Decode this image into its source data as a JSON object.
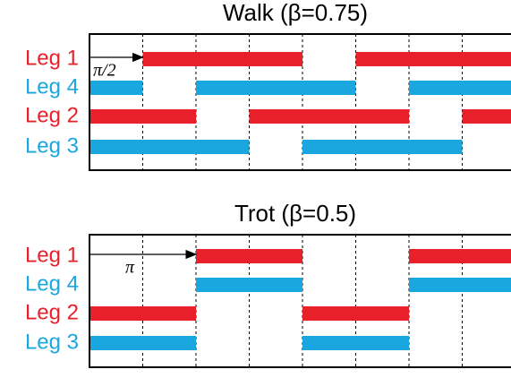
{
  "panels": [
    {
      "title": "Walk (β=0.75)",
      "xlim": [
        0,
        8
      ],
      "xticks": [
        1,
        2,
        3,
        4,
        5,
        6,
        7
      ],
      "arrow": {
        "from": 0,
        "to": 1,
        "label": "π/2"
      },
      "legs": [
        {
          "label": "Leg 1",
          "color": "#e8202a",
          "segments": [
            [
              1,
              4
            ],
            [
              5,
              8
            ]
          ]
        },
        {
          "label": "Leg 4",
          "color": "#1aa7e0",
          "segments": [
            [
              0,
              1
            ],
            [
              2,
              5
            ],
            [
              6,
              8
            ]
          ]
        },
        {
          "label": "Leg 2",
          "color": "#e8202a",
          "segments": [
            [
              0,
              2
            ],
            [
              3,
              6
            ],
            [
              7,
              8
            ]
          ]
        },
        {
          "label": "Leg 3",
          "color": "#1aa7e0",
          "segments": [
            [
              0,
              3
            ],
            [
              4,
              7
            ]
          ]
        }
      ]
    },
    {
      "title": "Trot (β=0.5)",
      "xlim": [
        0,
        8
      ],
      "xticks": [
        1,
        2,
        3,
        4,
        5,
        6,
        7
      ],
      "arrow": {
        "from": 0,
        "to": 2,
        "label": "π"
      },
      "legs": [
        {
          "label": "Leg 1",
          "color": "#e8202a",
          "segments": [
            [
              2,
              4
            ],
            [
              6,
              8
            ]
          ]
        },
        {
          "label": "Leg 4",
          "color": "#1aa7e0",
          "segments": [
            [
              2,
              4
            ],
            [
              6,
              8
            ]
          ]
        },
        {
          "label": "Leg 2",
          "color": "#e8202a",
          "segments": [
            [
              0,
              2
            ],
            [
              4,
              6
            ]
          ]
        },
        {
          "label": "Leg 3",
          "color": "#1aa7e0",
          "segments": [
            [
              0,
              2
            ],
            [
              4,
              6
            ]
          ]
        }
      ]
    }
  ]
}
